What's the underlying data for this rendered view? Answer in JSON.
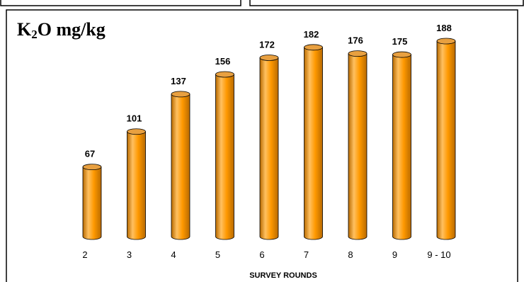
{
  "chart_data": {
    "type": "bar",
    "title_parts": [
      "K",
      "2",
      "O mg/kg"
    ],
    "xlabel": "SURVEY ROUNDS",
    "ylabel": "",
    "categories": [
      "2",
      "3",
      "4",
      "5",
      "6",
      "7",
      "8",
      "9",
      "9 - 10"
    ],
    "values": [
      67,
      101,
      137,
      156,
      172,
      182,
      176,
      175,
      188
    ],
    "data_labels": [
      "67",
      "101",
      "137",
      "156",
      "172",
      "182",
      "176",
      "175",
      "188"
    ],
    "bar_style": "3d-cylinder",
    "grid": false,
    "legend": "none",
    "colors": {
      "bar_light": "#ffc060",
      "bar_main": "#ff9900",
      "bar_dark": "#b86a00",
      "bar_top": "#e8a040",
      "frame": "#000000"
    }
  }
}
